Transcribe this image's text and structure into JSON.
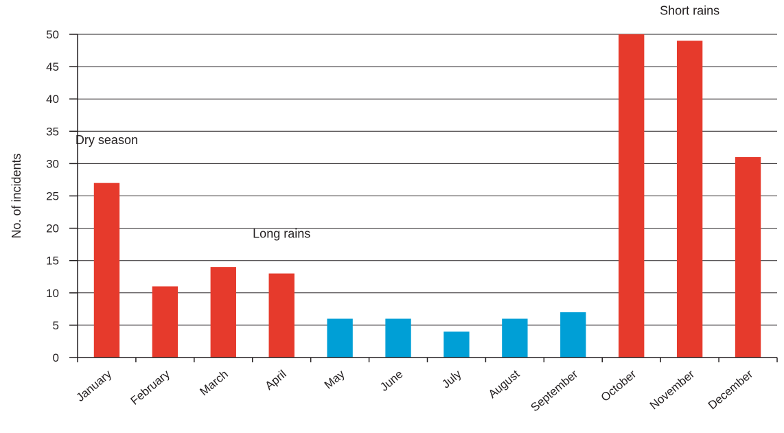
{
  "chart_data": {
    "type": "bar",
    "title": "",
    "xlabel": "",
    "ylabel": "No. of incidents",
    "ylim": [
      0,
      50
    ],
    "yticks": [
      0,
      5,
      10,
      15,
      20,
      25,
      30,
      35,
      40,
      45,
      50
    ],
    "grid": true,
    "categories": [
      "January",
      "February",
      "March",
      "April",
      "May",
      "June",
      "July",
      "August",
      "September",
      "October",
      "November",
      "December"
    ],
    "values": [
      27,
      11,
      14,
      13,
      6,
      6,
      4,
      6,
      7,
      50,
      49,
      31
    ],
    "bar_colors": [
      "#e63a2c",
      "#e63a2c",
      "#e63a2c",
      "#e63a2c",
      "#009fd6",
      "#009fd6",
      "#009fd6",
      "#009fd6",
      "#009fd6",
      "#e63a2c",
      "#e63a2c",
      "#e63a2c"
    ],
    "annotations": [
      {
        "text": "Dry season",
        "category": "January",
        "y": 33
      },
      {
        "text": "Long rains",
        "category": "April",
        "y": 18.5
      },
      {
        "text": "Short rains",
        "category": "November",
        "y": 53
      }
    ]
  }
}
